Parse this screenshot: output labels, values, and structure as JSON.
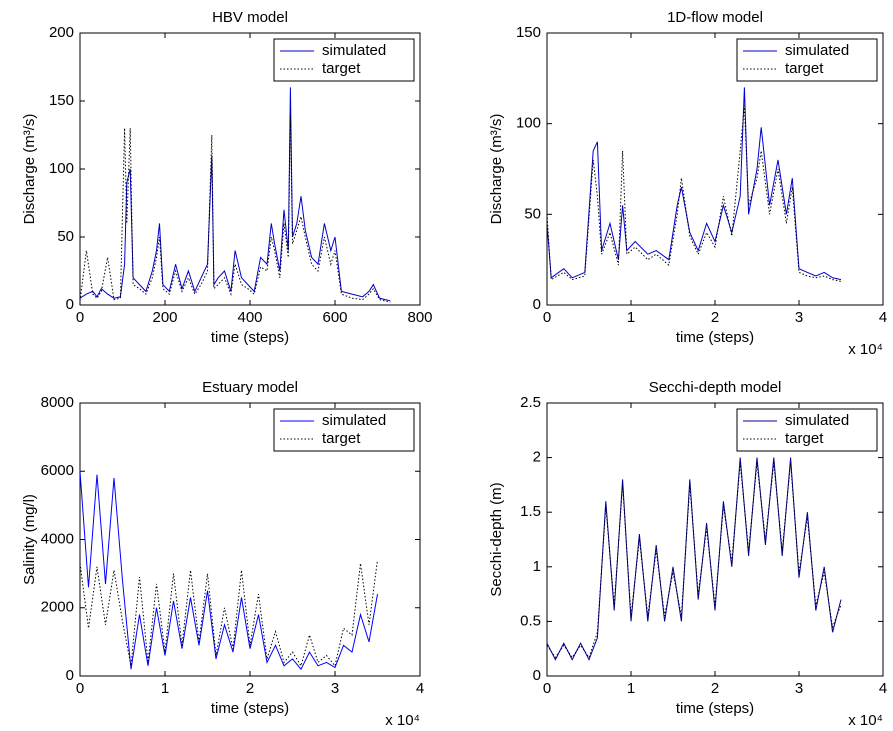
{
  "chart_data": [
    {
      "type": "line",
      "title": "HBV model",
      "xlabel": "time (steps)",
      "ylabel": "Discharge (m³/s)",
      "xlim": [
        0,
        800
      ],
      "xticks": [
        0,
        200,
        400,
        600,
        800
      ],
      "ylim": [
        0,
        200
      ],
      "yticks": [
        0,
        50,
        100,
        150,
        200
      ],
      "legend": "upper right",
      "x": [
        0,
        15,
        30,
        40,
        50,
        65,
        80,
        95,
        105,
        110,
        118,
        125,
        140,
        155,
        170,
        180,
        187,
        195,
        210,
        225,
        240,
        255,
        270,
        285,
        300,
        310,
        315,
        325,
        340,
        355,
        365,
        380,
        395,
        410,
        425,
        440,
        450,
        458,
        470,
        480,
        490,
        495,
        500,
        510,
        520,
        530,
        545,
        560,
        575,
        590,
        600,
        615,
        640,
        665,
        680,
        690,
        705,
        730
      ],
      "series": [
        {
          "name": "simulated",
          "color": "#0000cc",
          "dash": "solid",
          "values": [
            5,
            8,
            10,
            6,
            12,
            8,
            5,
            6,
            30,
            90,
            100,
            20,
            15,
            10,
            25,
            40,
            60,
            15,
            10,
            30,
            12,
            25,
            10,
            20,
            30,
            110,
            15,
            20,
            25,
            10,
            40,
            20,
            15,
            10,
            35,
            30,
            60,
            45,
            25,
            70,
            40,
            160,
            50,
            60,
            80,
            55,
            35,
            30,
            60,
            40,
            50,
            10,
            8,
            6,
            10,
            15,
            5,
            3
          ]
        },
        {
          "name": "target",
          "color": "#000000",
          "dash": "dotted",
          "values": [
            3,
            40,
            8,
            5,
            10,
            35,
            4,
            5,
            130,
            60,
            130,
            15,
            12,
            8,
            20,
            35,
            50,
            12,
            8,
            25,
            10,
            20,
            8,
            15,
            25,
            125,
            12,
            15,
            20,
            8,
            30,
            15,
            12,
            8,
            28,
            25,
            50,
            40,
            20,
            60,
            35,
            140,
            45,
            55,
            65,
            50,
            30,
            25,
            50,
            30,
            40,
            8,
            5,
            4,
            8,
            12,
            4,
            2
          ]
        }
      ]
    },
    {
      "type": "line",
      "title": "1D-flow model",
      "xlabel": "time (steps)",
      "ylabel": "Discharge (m³/s)",
      "x_multiplier": "x 10⁴",
      "xlim": [
        0,
        4
      ],
      "xticks": [
        0,
        1,
        2,
        3,
        4
      ],
      "ylim": [
        0,
        150
      ],
      "yticks": [
        0,
        50,
        100,
        150
      ],
      "legend": "upper right",
      "x": [
        0,
        0.05,
        0.2,
        0.3,
        0.45,
        0.55,
        0.6,
        0.65,
        0.75,
        0.85,
        0.9,
        0.95,
        1.05,
        1.2,
        1.3,
        1.45,
        1.55,
        1.6,
        1.7,
        1.8,
        1.9,
        2.0,
        2.1,
        2.2,
        2.3,
        2.35,
        2.4,
        2.5,
        2.55,
        2.65,
        2.75,
        2.85,
        2.92,
        3.0,
        3.1,
        3.2,
        3.3,
        3.4,
        3.5
      ],
      "series": [
        {
          "name": "simulated",
          "color": "#0000cc",
          "dash": "solid",
          "values": [
            45,
            15,
            20,
            15,
            18,
            85,
            90,
            30,
            45,
            25,
            55,
            30,
            35,
            28,
            30,
            25,
            55,
            65,
            40,
            30,
            45,
            35,
            55,
            40,
            60,
            120,
            50,
            75,
            98,
            55,
            80,
            50,
            70,
            20,
            18,
            16,
            18,
            15,
            14
          ]
        },
        {
          "name": "target",
          "color": "#000000",
          "dash": "dotted",
          "values": [
            50,
            14,
            18,
            14,
            16,
            80,
            60,
            28,
            40,
            22,
            85,
            28,
            32,
            25,
            28,
            22,
            50,
            70,
            38,
            28,
            40,
            32,
            60,
            38,
            85,
            110,
            55,
            70,
            85,
            50,
            75,
            45,
            65,
            18,
            16,
            15,
            16,
            14,
            13
          ]
        }
      ]
    },
    {
      "type": "line",
      "title": "Estuary model",
      "xlabel": "time (steps)",
      "ylabel": "Salinity (mg/l)",
      "x_multiplier": "x 10⁴",
      "xlim": [
        0,
        4
      ],
      "xticks": [
        0,
        1,
        2,
        3,
        4
      ],
      "ylim": [
        0,
        8000
      ],
      "yticks": [
        0,
        2000,
        4000,
        6000,
        8000
      ],
      "legend": "upper right",
      "x": [
        0,
        0.1,
        0.2,
        0.3,
        0.4,
        0.5,
        0.6,
        0.7,
        0.8,
        0.9,
        1.0,
        1.1,
        1.2,
        1.3,
        1.4,
        1.5,
        1.6,
        1.7,
        1.8,
        1.9,
        2.0,
        2.1,
        2.2,
        2.3,
        2.4,
        2.5,
        2.6,
        2.7,
        2.8,
        2.9,
        3.0,
        3.1,
        3.2,
        3.3,
        3.4,
        3.5
      ],
      "series": [
        {
          "name": "simulated",
          "color": "#0000ff",
          "dash": "solid",
          "values": [
            6000,
            2600,
            5900,
            2700,
            5800,
            2800,
            200,
            1800,
            300,
            2000,
            600,
            2200,
            800,
            2300,
            900,
            2500,
            500,
            1500,
            700,
            2300,
            800,
            1800,
            400,
            900,
            300,
            500,
            200,
            700,
            300,
            400,
            250,
            900,
            700,
            1800,
            1000,
            2400
          ]
        },
        {
          "name": "target",
          "color": "#000000",
          "dash": "dotted",
          "values": [
            3300,
            1400,
            3200,
            1500,
            3100,
            1600,
            300,
            2900,
            400,
            2700,
            700,
            3000,
            900,
            3100,
            1000,
            3000,
            600,
            2000,
            800,
            3100,
            900,
            2400,
            500,
            1300,
            400,
            700,
            300,
            1200,
            400,
            600,
            300,
            1400,
            1200,
            3300,
            1500,
            3400
          ]
        }
      ]
    },
    {
      "type": "line",
      "title": "Secchi-depth model",
      "xlabel": "time (steps)",
      "ylabel": "Secchi-depth (m)",
      "x_multiplier": "x 10⁴",
      "xlim": [
        0,
        4
      ],
      "xticks": [
        0,
        1,
        2,
        3,
        4
      ],
      "ylim": [
        0,
        2.5
      ],
      "yticks": [
        0,
        0.5,
        1,
        1.5,
        2,
        2.5
      ],
      "legend": "upper right",
      "x": [
        0,
        0.1,
        0.2,
        0.3,
        0.4,
        0.5,
        0.6,
        0.7,
        0.8,
        0.9,
        1.0,
        1.1,
        1.2,
        1.3,
        1.4,
        1.5,
        1.6,
        1.7,
        1.8,
        1.9,
        2.0,
        2.1,
        2.2,
        2.3,
        2.4,
        2.5,
        2.6,
        2.7,
        2.8,
        2.9,
        3.0,
        3.1,
        3.2,
        3.3,
        3.4,
        3.5
      ],
      "series": [
        {
          "name": "simulated",
          "color": "#000099",
          "dash": "solid",
          "values": [
            0.3,
            0.15,
            0.3,
            0.15,
            0.3,
            0.15,
            0.35,
            1.6,
            0.6,
            1.8,
            0.5,
            1.3,
            0.5,
            1.2,
            0.5,
            1.0,
            0.5,
            1.8,
            0.7,
            1.4,
            0.6,
            1.6,
            1.0,
            2.0,
            1.1,
            2.0,
            1.2,
            2.0,
            1.1,
            2.0,
            0.9,
            1.5,
            0.6,
            1.0,
            0.4,
            0.7
          ]
        },
        {
          "name": "target",
          "color": "#000000",
          "dash": "dotted",
          "values": [
            0.28,
            0.17,
            0.28,
            0.17,
            0.28,
            0.17,
            0.4,
            1.55,
            0.65,
            1.75,
            0.55,
            1.25,
            0.55,
            1.15,
            0.55,
            0.95,
            0.55,
            1.75,
            0.75,
            1.35,
            0.65,
            1.55,
            1.05,
            1.95,
            1.15,
            1.95,
            1.25,
            1.95,
            1.15,
            1.95,
            0.95,
            1.45,
            0.65,
            0.95,
            0.45,
            0.65
          ]
        }
      ]
    }
  ]
}
